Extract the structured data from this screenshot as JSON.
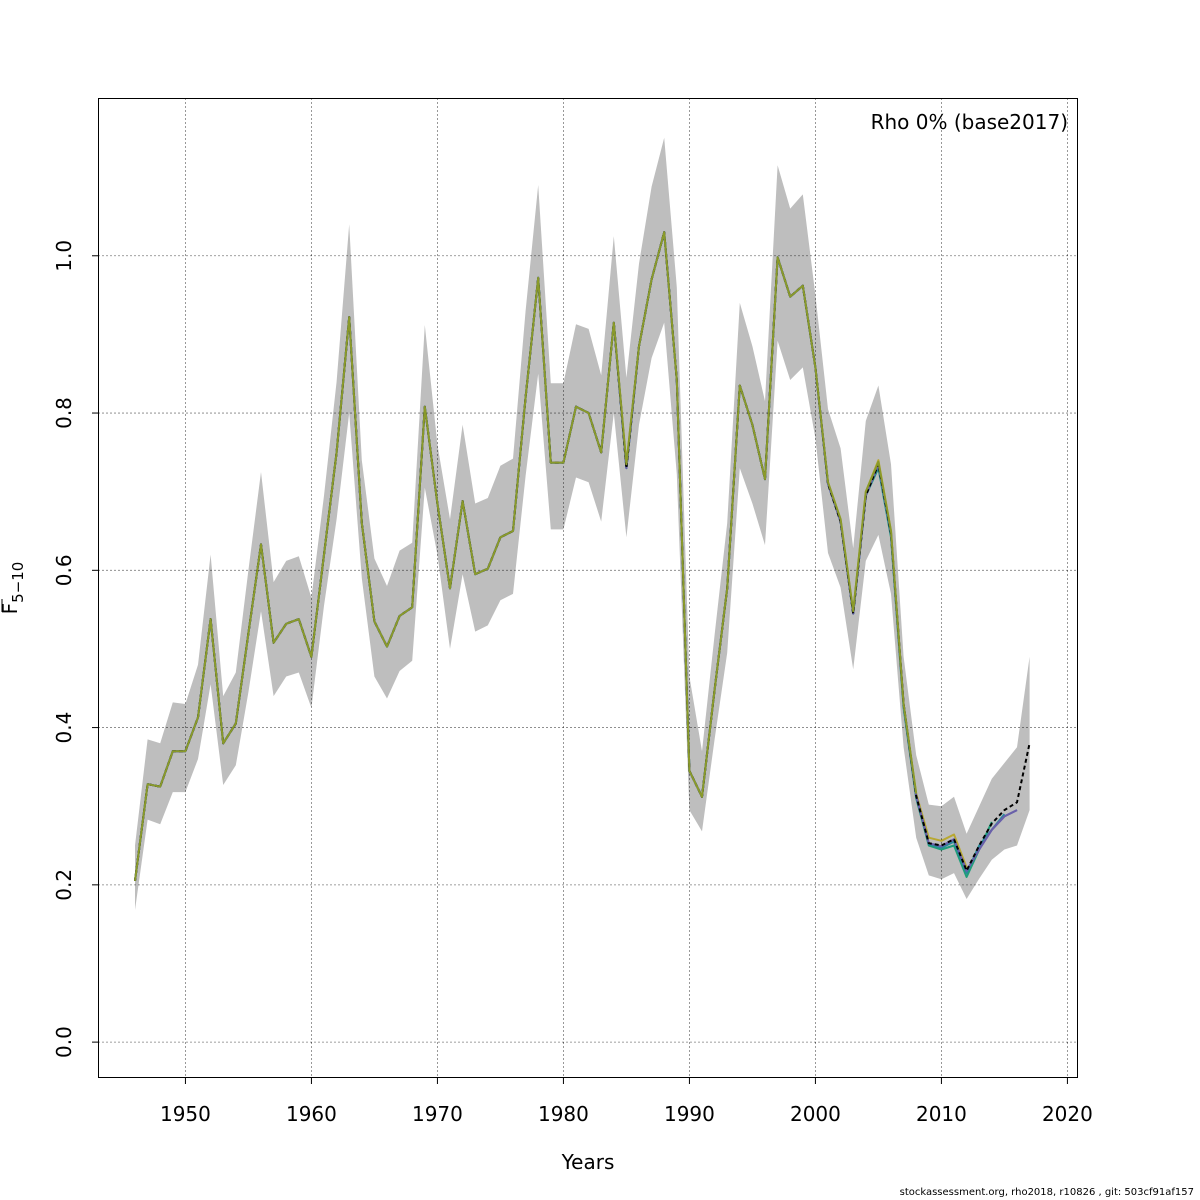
{
  "chart_data": {
    "type": "line",
    "title": "",
    "legend_text": "Rho 0% (base2017)",
    "legend_position": "top-right",
    "xlabel": "Years",
    "ylabel_main": "F",
    "ylabel_sub": "5−10",
    "xlim": [
      1943.1,
      2020.8
    ],
    "ylim": [
      -0.045,
      1.2
    ],
    "xticks": [
      1950,
      1960,
      1970,
      1980,
      1990,
      2000,
      2010,
      2020
    ],
    "yticks": [
      0.0,
      0.2,
      0.4,
      0.6,
      0.8,
      1.0
    ],
    "ytick_labels": [
      "0.0",
      "0.2",
      "0.4",
      "0.6",
      "0.8",
      "1.0"
    ],
    "grid": true,
    "band_color": "#bebebe",
    "years": [
      1946,
      1947,
      1948,
      1949,
      1950,
      1951,
      1952,
      1953,
      1954,
      1955,
      1956,
      1957,
      1958,
      1959,
      1960,
      1961,
      1962,
      1963,
      1964,
      1965,
      1966,
      1967,
      1968,
      1969,
      1970,
      1971,
      1972,
      1973,
      1974,
      1975,
      1976,
      1977,
      1978,
      1979,
      1980,
      1981,
      1982,
      1983,
      1984,
      1985,
      1986,
      1987,
      1988,
      1989,
      1990,
      1991,
      1992,
      1993,
      1994,
      1995,
      1996,
      1997,
      1998,
      1999,
      2000,
      2001,
      2002,
      2003,
      2004,
      2005,
      2006,
      2007,
      2008,
      2009,
      2010,
      2011,
      2012,
      2013,
      2014,
      2015,
      2016,
      2017
    ],
    "band_upper": [
      0.25,
      0.385,
      0.38,
      0.432,
      0.43,
      0.48,
      0.62,
      0.44,
      0.47,
      0.6,
      0.725,
      0.585,
      0.612,
      0.618,
      0.565,
      0.695,
      0.84,
      1.04,
      0.74,
      0.615,
      0.58,
      0.625,
      0.635,
      0.912,
      0.76,
      0.665,
      0.785,
      0.685,
      0.692,
      0.733,
      0.742,
      0.93,
      1.09,
      0.838,
      0.838,
      0.913,
      0.907,
      0.848,
      1.025,
      0.845,
      0.99,
      1.088,
      1.15,
      0.96,
      0.465,
      0.37,
      0.518,
      0.66,
      0.94,
      0.885,
      0.815,
      1.115,
      1.06,
      1.078,
      0.95,
      0.805,
      0.755,
      0.628,
      0.79,
      0.835,
      0.735,
      0.49,
      0.365,
      0.302,
      0.3,
      0.312,
      0.265,
      0.3,
      0.335,
      0.355,
      0.375,
      0.49
    ],
    "band_lower": [
      0.168,
      0.283,
      0.277,
      0.318,
      0.318,
      0.36,
      0.455,
      0.327,
      0.352,
      0.445,
      0.548,
      0.44,
      0.465,
      0.47,
      0.425,
      0.555,
      0.665,
      0.8,
      0.59,
      0.465,
      0.437,
      0.472,
      0.485,
      0.705,
      0.62,
      0.5,
      0.595,
      0.522,
      0.53,
      0.562,
      0.57,
      0.72,
      0.85,
      0.652,
      0.652,
      0.718,
      0.712,
      0.662,
      0.8,
      0.642,
      0.785,
      0.87,
      0.915,
      0.722,
      0.295,
      0.268,
      0.385,
      0.495,
      0.73,
      0.685,
      0.632,
      0.892,
      0.842,
      0.858,
      0.768,
      0.622,
      0.578,
      0.474,
      0.612,
      0.645,
      0.57,
      0.375,
      0.26,
      0.212,
      0.207,
      0.215,
      0.182,
      0.208,
      0.232,
      0.245,
      0.25,
      0.295
    ],
    "series": [
      {
        "color": "#b8a832",
        "values": [
          0.205,
          0.328,
          0.325,
          0.37,
          0.37,
          0.413,
          0.538,
          0.38,
          0.405,
          0.52,
          0.633,
          0.508,
          0.532,
          0.538,
          0.49,
          0.62,
          0.75,
          0.922,
          0.66,
          0.535,
          0.503,
          0.542,
          0.553,
          0.808,
          0.685,
          0.577,
          0.688,
          0.595,
          0.602,
          0.642,
          0.65,
          0.82,
          0.972,
          0.737,
          0.737,
          0.808,
          0.8,
          0.75,
          0.915,
          0.735,
          0.885,
          0.97,
          1.03,
          0.842,
          0.345,
          0.312,
          0.448,
          0.577,
          0.835,
          0.785,
          0.716,
          0.998,
          0.948,
          0.962,
          0.858,
          0.712,
          0.665,
          0.548,
          0.7,
          0.74,
          0.65,
          0.43,
          0.316,
          0.26,
          0.256,
          0.264,
          0.222
        ]
      },
      {
        "color": "#1f9e7a",
        "values": [
          0.205,
          0.328,
          0.325,
          0.37,
          0.37,
          0.413,
          0.538,
          0.38,
          0.405,
          0.52,
          0.633,
          0.508,
          0.532,
          0.538,
          0.49,
          0.62,
          0.75,
          0.922,
          0.66,
          0.535,
          0.503,
          0.542,
          0.553,
          0.808,
          0.685,
          0.577,
          0.688,
          0.595,
          0.602,
          0.642,
          0.65,
          0.82,
          0.972,
          0.737,
          0.737,
          0.808,
          0.8,
          0.75,
          0.915,
          0.73,
          0.885,
          0.97,
          1.03,
          0.842,
          0.345,
          0.312,
          0.448,
          0.577,
          0.835,
          0.785,
          0.716,
          0.998,
          0.948,
          0.962,
          0.858,
          0.71,
          0.662,
          0.545,
          0.695,
          0.73,
          0.642,
          0.425,
          0.31,
          0.25,
          0.245,
          0.25,
          0.21,
          0.245,
          0.28
        ]
      },
      {
        "color": "#2a8a9a",
        "values": [
          0.205,
          0.328,
          0.325,
          0.37,
          0.37,
          0.413,
          0.538,
          0.38,
          0.405,
          0.52,
          0.633,
          0.508,
          0.532,
          0.538,
          0.49,
          0.62,
          0.75,
          0.922,
          0.66,
          0.535,
          0.503,
          0.542,
          0.553,
          0.808,
          0.685,
          0.577,
          0.688,
          0.595,
          0.602,
          0.642,
          0.65,
          0.82,
          0.972,
          0.737,
          0.737,
          0.808,
          0.8,
          0.75,
          0.915,
          0.73,
          0.885,
          0.97,
          1.03,
          0.842,
          0.345,
          0.312,
          0.448,
          0.577,
          0.835,
          0.785,
          0.716,
          0.998,
          0.948,
          0.962,
          0.858,
          0.71,
          0.662,
          0.545,
          0.695,
          0.732,
          0.645,
          0.428,
          0.312,
          0.252,
          0.247,
          0.255,
          0.215,
          0.25,
          0.27,
          0.29
        ]
      },
      {
        "color": "#3a5fc8",
        "values": [
          0.205,
          0.328,
          0.325,
          0.37,
          0.37,
          0.413,
          0.538,
          0.38,
          0.405,
          0.52,
          0.633,
          0.508,
          0.532,
          0.538,
          0.49,
          0.62,
          0.75,
          0.922,
          0.66,
          0.535,
          0.503,
          0.542,
          0.553,
          0.808,
          0.685,
          0.577,
          0.688,
          0.595,
          0.602,
          0.642,
          0.65,
          0.82,
          0.972,
          0.737,
          0.737,
          0.808,
          0.8,
          0.75,
          0.915,
          0.73,
          0.885,
          0.97,
          1.03,
          0.842,
          0.345,
          0.312,
          0.448,
          0.577,
          0.835,
          0.785,
          0.716,
          0.998,
          0.948,
          0.962,
          0.858,
          0.71,
          0.662,
          0.545,
          0.695,
          0.735,
          0.647,
          0.43,
          0.313,
          0.253,
          0.249,
          0.258,
          0.218,
          0.245,
          0.27,
          0.287,
          0.295
        ]
      },
      {
        "color": "#6b5fa8",
        "values": [
          0.205,
          0.328,
          0.325,
          0.37,
          0.37,
          0.413,
          0.538,
          0.38,
          0.405,
          0.52,
          0.633,
          0.508,
          0.532,
          0.538,
          0.49,
          0.62,
          0.75,
          0.922,
          0.66,
          0.535,
          0.503,
          0.542,
          0.553,
          0.808,
          0.685,
          0.577,
          0.688,
          0.595,
          0.602,
          0.642,
          0.65,
          0.82,
          0.972,
          0.737,
          0.737,
          0.808,
          0.8,
          0.75,
          0.915,
          0.73,
          0.885,
          0.97,
          1.03,
          0.842,
          0.345,
          0.312,
          0.448,
          0.577,
          0.835,
          0.785,
          0.716,
          0.998,
          0.948,
          0.962,
          0.858,
          0.71,
          0.662,
          0.545,
          0.695,
          0.735,
          0.647,
          0.43,
          0.313,
          0.253,
          0.249,
          0.258,
          0.218,
          0.245,
          0.27,
          0.287,
          0.295
        ]
      },
      {
        "color": "#000000",
        "dashed": true,
        "values": [
          0.205,
          0.328,
          0.325,
          0.37,
          0.37,
          0.413,
          0.538,
          0.38,
          0.405,
          0.52,
          0.633,
          0.508,
          0.532,
          0.538,
          0.49,
          0.62,
          0.75,
          0.922,
          0.66,
          0.535,
          0.503,
          0.542,
          0.553,
          0.808,
          0.685,
          0.577,
          0.688,
          0.595,
          0.602,
          0.642,
          0.65,
          0.82,
          0.972,
          0.737,
          0.737,
          0.808,
          0.8,
          0.75,
          0.915,
          0.73,
          0.885,
          0.97,
          1.03,
          0.842,
          0.345,
          0.312,
          0.448,
          0.577,
          0.835,
          0.785,
          0.716,
          0.998,
          0.948,
          0.962,
          0.858,
          0.71,
          0.662,
          0.545,
          0.695,
          0.735,
          0.647,
          0.43,
          0.313,
          0.253,
          0.25,
          0.258,
          0.218,
          0.25,
          0.278,
          0.295,
          0.305,
          0.38
        ]
      },
      {
        "color": "#8a9a2a",
        "values": [
          0.205,
          0.328,
          0.325,
          0.37,
          0.37,
          0.413,
          0.538,
          0.38,
          0.405,
          0.52,
          0.633,
          0.508,
          0.532,
          0.538,
          0.49,
          0.62,
          0.75,
          0.922,
          0.66,
          0.535,
          0.503,
          0.542,
          0.553,
          0.808,
          0.685,
          0.577,
          0.688,
          0.595,
          0.602,
          0.642,
          0.65,
          0.82,
          0.972,
          0.737,
          0.737,
          0.808,
          0.8,
          0.75,
          0.915,
          0.735,
          0.885,
          0.97,
          1.03,
          0.842,
          0.345,
          0.312,
          0.448,
          0.577,
          0.835,
          0.785,
          0.716,
          0.998,
          0.948,
          0.962,
          0.858,
          0.712,
          0.665,
          0.548,
          0.7,
          0.738,
          0.65,
          0.43,
          0.316
        ]
      }
    ]
  },
  "footer": "stockassessment.org, rho2018, r10826 , git: 503cf91af157"
}
